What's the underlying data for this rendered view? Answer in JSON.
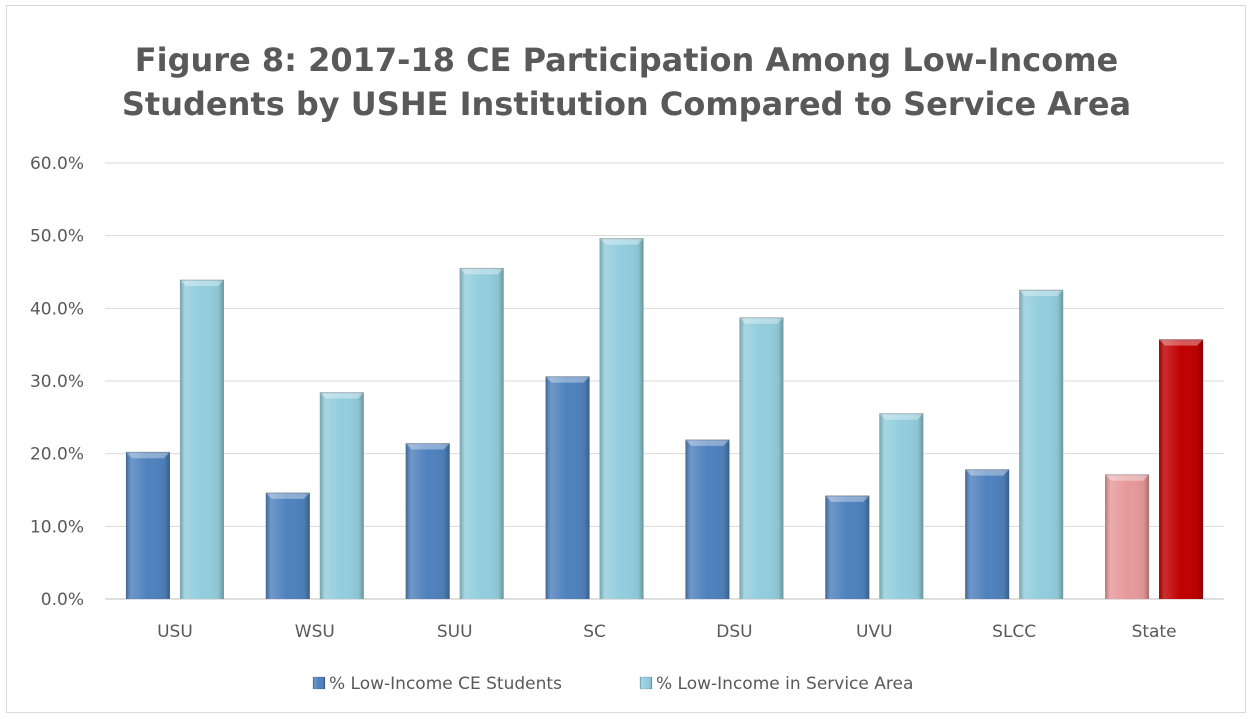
{
  "chart_data": {
    "type": "bar",
    "title_lines": [
      "Figure 8: 2017-18 CE Participation Among Low-Income",
      "Students by USHE Institution Compared to Service Area"
    ],
    "categories": [
      "USU",
      "WSU",
      "SUU",
      "SC",
      "DSU",
      "UVU",
      "SLCC",
      "State"
    ],
    "series": [
      {
        "name": "% Low-Income CE Students",
        "values": [
          20.2,
          14.6,
          21.4,
          30.6,
          21.9,
          14.2,
          17.8,
          17.1
        ],
        "color": "#4f81bd",
        "highlight_color": "#e6999a"
      },
      {
        "name": "% Low-Income in Service Area",
        "values": [
          43.9,
          28.4,
          45.5,
          49.6,
          38.7,
          25.5,
          42.5,
          35.7
        ],
        "color": "#93cddd",
        "highlight_color": "#c00000"
      }
    ],
    "highlight_category": "State",
    "y_ticks": [
      "0.0%",
      "10.0%",
      "20.0%",
      "30.0%",
      "40.0%",
      "50.0%",
      "60.0%"
    ],
    "ylim": [
      0,
      60
    ],
    "grid": true,
    "legend_position": "bottom",
    "xlabel": "",
    "ylabel": ""
  }
}
